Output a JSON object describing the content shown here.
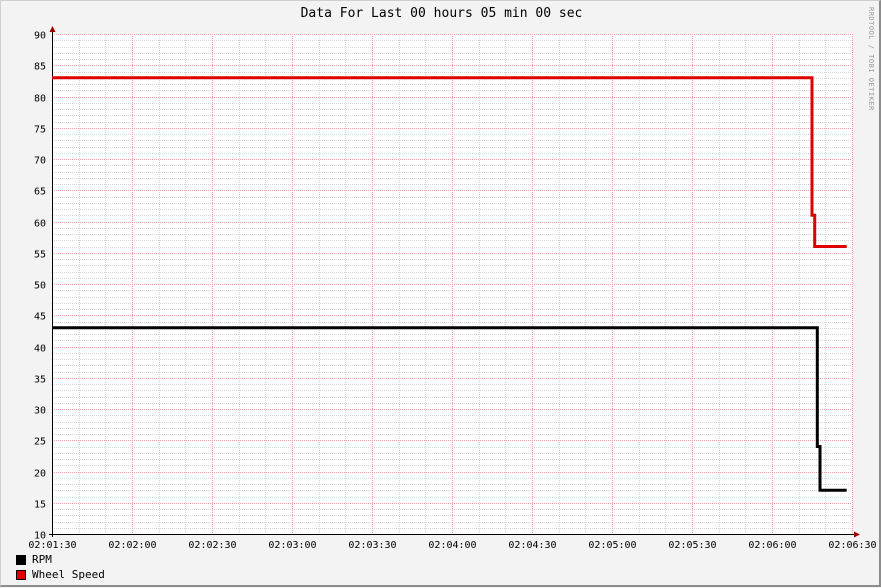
{
  "watermark": "RRDTOOL / TOBI OETIKER",
  "chart_data": {
    "type": "line",
    "title": "Data For Last 00 hours 05 min 00 sec",
    "xlabel": "",
    "ylabel": "",
    "x_tick_labels": [
      "02:01:30",
      "02:02:00",
      "02:02:30",
      "02:03:00",
      "02:03:30",
      "02:04:00",
      "02:04:30",
      "02:05:00",
      "02:05:30",
      "02:06:00",
      "02:06:30"
    ],
    "y_ticks": [
      10,
      15,
      20,
      25,
      30,
      35,
      40,
      45,
      50,
      55,
      60,
      65,
      70,
      75,
      80,
      85,
      90
    ],
    "ylim": [
      10,
      90
    ],
    "xlim": [
      "02:01:30",
      "02:06:30"
    ],
    "grid": true,
    "legend_position": "bottom-left",
    "series": [
      {
        "name": "RPM",
        "color": "#000000",
        "points": [
          {
            "x": "02:01:30",
            "y": 43
          },
          {
            "x": "02:06:17",
            "y": 43
          },
          {
            "x": "02:06:17",
            "y": 24
          },
          {
            "x": "02:06:18",
            "y": 24
          },
          {
            "x": "02:06:18",
            "y": 17
          },
          {
            "x": "02:06:28",
            "y": 17
          }
        ]
      },
      {
        "name": "Wheel Speed",
        "color": "#dd0000",
        "points": [
          {
            "x": "02:01:30",
            "y": 83
          },
          {
            "x": "02:06:15",
            "y": 83
          },
          {
            "x": "02:06:15",
            "y": 61
          },
          {
            "x": "02:06:16",
            "y": 61
          },
          {
            "x": "02:06:16",
            "y": 56
          },
          {
            "x": "02:06:28",
            "y": 56
          }
        ]
      }
    ]
  }
}
